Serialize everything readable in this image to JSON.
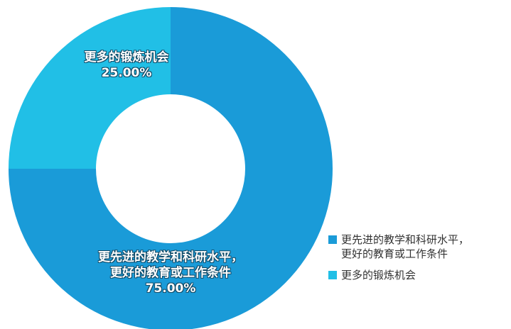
{
  "chart_data": {
    "type": "donut",
    "categories": [
      "更先进的教学和科研水平，\n更好的教育或工作条件",
      "更多的锻炼机会"
    ],
    "values": [
      75,
      25
    ],
    "value_labels": [
      "75.00%",
      "25.00%"
    ],
    "colors": [
      "#1a9bd8",
      "#21bfe6"
    ],
    "legend": "bottom-right"
  }
}
